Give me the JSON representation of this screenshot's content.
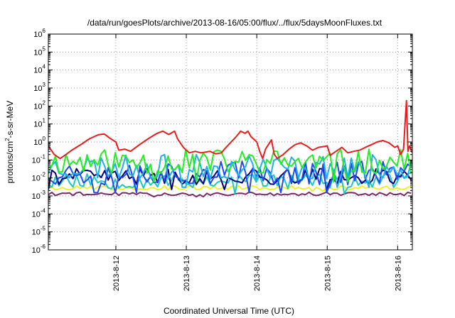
{
  "chart_data": {
    "type": "line",
    "title": "/data/run/goesPlots/archive/2013-08-16/05:00/flux/../flux/5daysMoonFluxes.txt",
    "xlabel": "Coordinated Universal Time (UTC)",
    "ylabel": {
      "prefix": "protons/cm",
      "sup": "2",
      "suffix": "-s-sr-MeV"
    },
    "yscale": "log",
    "ylim": [
      1e-06,
      1000000.0
    ],
    "y_ticks": [
      {
        "base": "10",
        "exp": "-6",
        "value": 1e-06
      },
      {
        "base": "10",
        "exp": "-5",
        "value": 1e-05
      },
      {
        "base": "10",
        "exp": "-4",
        "value": 0.0001
      },
      {
        "base": "10",
        "exp": "-3",
        "value": 0.001
      },
      {
        "base": "10",
        "exp": "-2",
        "value": 0.01
      },
      {
        "base": "10",
        "exp": "-1",
        "value": 0.1
      },
      {
        "base": "10",
        "exp": "0",
        "value": 1
      },
      {
        "base": "10",
        "exp": "1",
        "value": 10
      },
      {
        "base": "10",
        "exp": "2",
        "value": 100
      },
      {
        "base": "10",
        "exp": "3",
        "value": 1000
      },
      {
        "base": "10",
        "exp": "4",
        "value": 10000
      },
      {
        "base": "10",
        "exp": "5",
        "value": 100000
      },
      {
        "base": "10",
        "exp": "6",
        "value": 1000000
      }
    ],
    "xlim": [
      "2013-08-11T01:00",
      "2013-08-16T05:00"
    ],
    "x_ticks": [
      {
        "label": "2013-8-12",
        "value": "2013-08-12T00:00"
      },
      {
        "label": "2013-8-13",
        "value": "2013-08-13T00:00"
      },
      {
        "label": "2013-8-14",
        "value": "2013-08-14T00:00"
      },
      {
        "label": "2013-8-15",
        "value": "2013-08-15T00:00"
      },
      {
        "label": "2013-8-16",
        "value": "2013-08-16T00:00"
      }
    ],
    "grid": true,
    "legend": "none",
    "series": [
      {
        "color": "#e81e1e",
        "points": [
          [
            "2013-08-11T01:00",
            0.6
          ],
          [
            "2013-08-11T03:00",
            0.2
          ],
          [
            "2013-08-11T05:00",
            0.12
          ],
          [
            "2013-08-11T07:00",
            0.2
          ],
          [
            "2013-08-11T09:00",
            0.35
          ],
          [
            "2013-08-11T12:00",
            0.7
          ],
          [
            "2013-08-11T15:00",
            1.5
          ],
          [
            "2013-08-11T18:00",
            2.5
          ],
          [
            "2013-08-11T20:00",
            2.8
          ],
          [
            "2013-08-11T22:00",
            1.6
          ],
          [
            "2013-08-12T00:00",
            1.0
          ],
          [
            "2013-08-12T01:00",
            0.35
          ],
          [
            "2013-08-12T03:00",
            0.4
          ],
          [
            "2013-08-12T05:00",
            0.3
          ],
          [
            "2013-08-12T08:00",
            0.7
          ],
          [
            "2013-08-12T11:00",
            1.5
          ],
          [
            "2013-08-12T14:00",
            3.0
          ],
          [
            "2013-08-12T16:00",
            4.0
          ],
          [
            "2013-08-12T18:00",
            2.6
          ],
          [
            "2013-08-12T20:00",
            4.0
          ],
          [
            "2013-08-12T21:00",
            1.5
          ],
          [
            "2013-08-12T23:00",
            0.5
          ],
          [
            "2013-08-13T01:00",
            0.25
          ],
          [
            "2013-08-13T03:00",
            0.3
          ],
          [
            "2013-08-13T05:00",
            0.25
          ],
          [
            "2013-08-13T08:00",
            0.3
          ],
          [
            "2013-08-13T10:00",
            0.22
          ],
          [
            "2013-08-13T12:00",
            0.25
          ],
          [
            "2013-08-13T13:00",
            0.4
          ],
          [
            "2013-08-13T15:00",
            0.9
          ],
          [
            "2013-08-13T17:00",
            2.0
          ],
          [
            "2013-08-13T18:30",
            4.0
          ],
          [
            "2013-08-13T20:00",
            3.0
          ],
          [
            "2013-08-13T21:00",
            4.0
          ],
          [
            "2013-08-13T22:00",
            2.0
          ],
          [
            "2013-08-14T00:00",
            1.0
          ],
          [
            "2013-08-14T01:00",
            0.3
          ],
          [
            "2013-08-14T02:00",
            0.12
          ],
          [
            "2013-08-14T03:00",
            0.4
          ],
          [
            "2013-08-14T05:00",
            1.3
          ],
          [
            "2013-08-14T06:00",
            0.2
          ],
          [
            "2013-08-14T07:00",
            0.12
          ],
          [
            "2013-08-14T09:00",
            0.2
          ],
          [
            "2013-08-14T11:00",
            0.4
          ],
          [
            "2013-08-14T13:00",
            0.7
          ],
          [
            "2013-08-14T15:00",
            0.9
          ],
          [
            "2013-08-14T17:00",
            0.6
          ],
          [
            "2013-08-14T19:00",
            0.35
          ],
          [
            "2013-08-14T21:00",
            0.5
          ],
          [
            "2013-08-15T00:00",
            0.6
          ],
          [
            "2013-08-15T01:00",
            0.18
          ],
          [
            "2013-08-15T03:00",
            0.3
          ],
          [
            "2013-08-15T05:00",
            0.5
          ],
          [
            "2013-08-15T07:00",
            0.25
          ],
          [
            "2013-08-15T09:00",
            0.3
          ],
          [
            "2013-08-15T11:00",
            0.35
          ],
          [
            "2013-08-15T13:00",
            0.5
          ],
          [
            "2013-08-15T15:00",
            0.7
          ],
          [
            "2013-08-15T17:00",
            1.0
          ],
          [
            "2013-08-15T19:00",
            1.2
          ],
          [
            "2013-08-15T21:00",
            0.9
          ],
          [
            "2013-08-15T23:00",
            0.5
          ],
          [
            "2013-08-16T00:00",
            0.6
          ],
          [
            "2013-08-16T01:00",
            0.2
          ],
          [
            "2013-08-16T02:00",
            0.4
          ],
          [
            "2013-08-16T03:00",
            200
          ],
          [
            "2013-08-16T03:30",
            0.3
          ],
          [
            "2013-08-16T04:00",
            0.6
          ],
          [
            "2013-08-16T05:00",
            0.25
          ]
        ]
      },
      {
        "color": "#22ee22",
        "pattern": {
          "base": 0.08,
          "amp": 0.7,
          "seed": 11,
          "step_hours": 1.2
        }
      },
      {
        "color": "#1fb0e8",
        "pattern": {
          "base": 0.04,
          "amp": 0.7,
          "seed": 23,
          "step_hours": 1.2
        }
      },
      {
        "color": "#1e4cf0",
        "pattern": {
          "base": 0.02,
          "amp": 0.7,
          "seed": 37,
          "step_hours": 1.2
        }
      },
      {
        "color": "#00007a",
        "pattern": {
          "base": 0.012,
          "amp": 0.45,
          "seed": 41,
          "step_hours": 1.2
        }
      },
      {
        "color": "#1ac8c8",
        "pattern": {
          "base": 0.007,
          "amp": 0.45,
          "seed": 53,
          "step_hours": 1.2
        }
      },
      {
        "color": "#f0f020",
        "pattern": {
          "base": 0.0028,
          "amp": 0.12,
          "seed": 67,
          "step_hours": 1.2
        }
      },
      {
        "color": "#7a2a6a",
        "pattern": {
          "base": 0.0013,
          "amp": 0.1,
          "seed": 79,
          "step_hours": 1.2
        }
      }
    ]
  }
}
